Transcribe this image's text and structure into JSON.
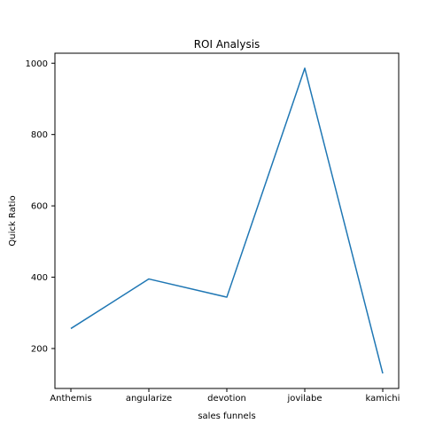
{
  "chart_data": {
    "type": "line",
    "title": "ROI Analysis",
    "xlabel": "sales funnels",
    "ylabel": "Quick Ratio",
    "categories": [
      "Anthemis",
      "angularize",
      "devotion",
      "jovilabe",
      "kamichi"
    ],
    "series": [
      {
        "values": [
          256,
          395,
          344,
          986,
          130
        ],
        "color": "#1f77b4"
      }
    ],
    "yticks": [
      200,
      400,
      600,
      800,
      1000
    ],
    "ylim": [
      88,
      1028
    ],
    "grid": false,
    "legend": "none"
  }
}
